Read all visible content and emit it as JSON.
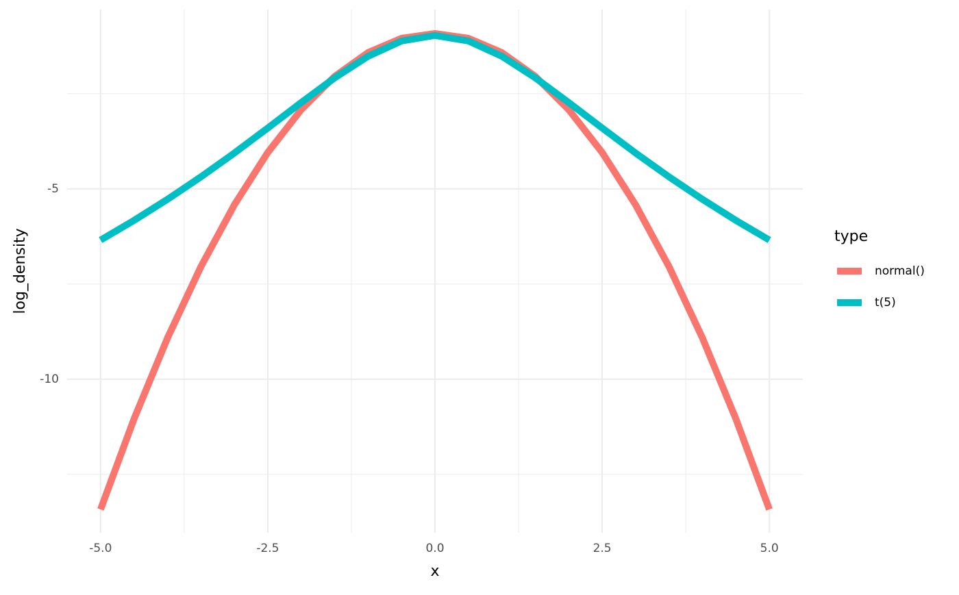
{
  "chart_data": {
    "type": "line",
    "x_label": "x",
    "y_label": "log_density",
    "x": [
      -5,
      -4.5,
      -4,
      -3.5,
      -3,
      -2.5,
      -2,
      -1.5,
      -1,
      -0.5,
      0,
      0.5,
      1,
      1.5,
      2,
      2.5,
      3,
      3.5,
      4,
      4.5,
      5
    ],
    "series": [
      {
        "name": "normal()",
        "color": "#f8766d",
        "values": [
          -13.419,
          -11.044,
          -8.919,
          -7.044,
          -5.419,
          -4.044,
          -2.919,
          -2.044,
          -1.419,
          -1.044,
          -0.919,
          -1.044,
          -1.419,
          -2.044,
          -2.919,
          -4.044,
          -5.419,
          -7.044,
          -8.919,
          -11.044,
          -13.419
        ]
      },
      {
        "name": "t(5)",
        "color": "#00bfc4",
        "values": [
          -6.344,
          -5.827,
          -5.274,
          -4.684,
          -4.058,
          -3.401,
          -2.732,
          -2.083,
          -1.516,
          -1.115,
          -0.969,
          -1.115,
          -1.516,
          -2.083,
          -2.732,
          -3.401,
          -4.058,
          -4.684,
          -5.274,
          -5.827,
          -6.344
        ]
      }
    ],
    "legend_title": "type",
    "legend": "right",
    "xlim": [
      -5.5,
      5.5
    ],
    "xticks": [
      {
        "value": -5,
        "label": "-5.0"
      },
      -2.5,
      {
        "value": 0,
        "label": "0.0"
      },
      2.5,
      {
        "value": 5,
        "label": "5.0"
      }
    ],
    "x_minor_grid": [
      -3.75,
      -1.25,
      1.25,
      3.75
    ],
    "ylim": [
      -14.03,
      -0.29
    ],
    "yticks": [
      -5,
      -10
    ],
    "y_minor_grid": [
      -2.5,
      -7.5,
      -12.5
    ],
    "grid": true
  }
}
